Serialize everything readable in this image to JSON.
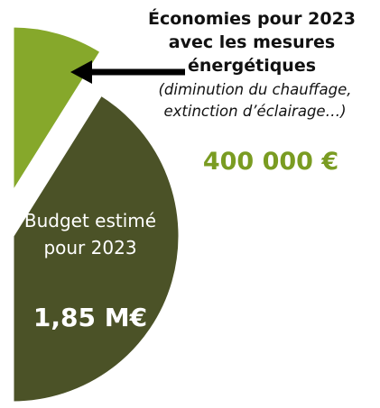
{
  "chart_data": {
    "type": "pie",
    "categories": [
      "Économies pour 2023 avec les mesures énergétiques",
      "Budget estimé pour 2023"
    ],
    "values": [
      400000,
      1850000
    ],
    "value_labels": [
      "400 000 €",
      "1,85 M€"
    ],
    "colors": [
      "#86a82b",
      "#4b5227"
    ],
    "subtitle": "(diminution du chauffage, extinction d’éclairage…)"
  }
}
